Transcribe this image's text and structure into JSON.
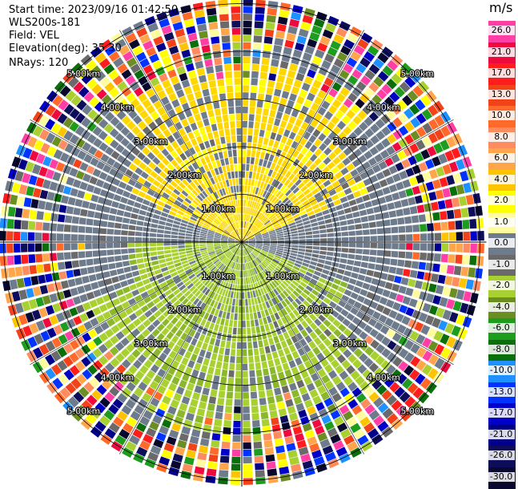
{
  "info": {
    "start_time": "Start time: 2023/09/16 01:42:50",
    "instrument": "WLS200s-181",
    "field": "Field: VEL",
    "elevation": "Elevation(deg): 35.30",
    "nrays": "NRays: 120"
  },
  "colorbar": {
    "unit": "m/s",
    "ticks": [
      "26.0",
      "21.0",
      "17.0",
      "13.0",
      "10.0",
      "8.0",
      "6.0",
      "4.0",
      "2.0",
      "1.0",
      "0.0",
      "-1.0",
      "-2.0",
      "-4.0",
      "-6.0",
      "-8.0",
      "-10.0",
      "-13.0",
      "-17.0",
      "-21.0",
      "-26.0",
      "-30.0"
    ],
    "colors": [
      "#ff3fa6",
      "#ee0a3e",
      "#ff1c1c",
      "#f2421a",
      "#ff6a2a",
      "#ff8c5e",
      "#ffa64d",
      "#ffc400",
      "#ffff00",
      "#fffc9e",
      "#6d7b8c",
      "#6a6a6a",
      "#a8d030",
      "#6b8e23",
      "#1e9c1e",
      "#0a6e0a",
      "#1e90ff",
      "#0033ff",
      "#0000c8",
      "#00008b",
      "#0d0d5c",
      "#08082e"
    ]
  },
  "chart_data": {
    "type": "ppi",
    "field": "VEL",
    "units": "m/s",
    "nrays": 120,
    "range_rings_km": [
      1.0,
      2.0,
      3.0,
      4.0,
      5.0
    ],
    "ring_labels": [
      "1.00km",
      "2.00km",
      "3.00km",
      "4.00km",
      "5.00km"
    ],
    "grid": true,
    "patterns": {
      "inner_yellow_sector": {
        "azimuth_deg": [
          300,
          60
        ],
        "range_km": [
          0,
          4.0
        ],
        "velocity": 4.0
      },
      "inner_green_sector": {
        "azimuth_deg": [
          120,
          270
        ],
        "range_km": [
          0,
          4.2
        ],
        "velocity": -2.0
      },
      "background_inner": {
        "range_km": [
          0,
          4.0
        ],
        "velocity": 0.0
      },
      "noise_outer": {
        "range_km": [
          4.0,
          5.8
        ],
        "velocity": "random"
      }
    }
  }
}
